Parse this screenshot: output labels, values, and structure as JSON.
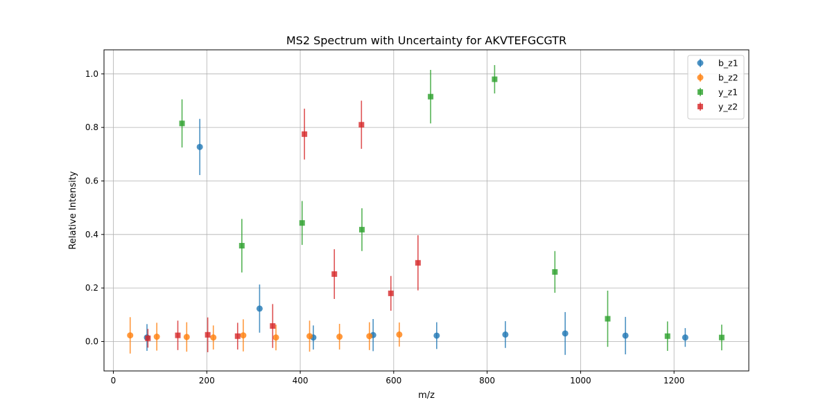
{
  "chart_data": {
    "type": "scatter",
    "title": "MS2 Spectrum with Uncertainty for AKVTEFGCGTR",
    "xlabel": "m/z",
    "ylabel": "Relative Intensity",
    "xlim": [
      -20,
      1360
    ],
    "ylim": [
      -0.11,
      1.09
    ],
    "xticks": [
      0,
      200,
      400,
      600,
      800,
      1000,
      1200
    ],
    "yticks": [
      0.0,
      0.2,
      0.4,
      0.6,
      0.8,
      1.0
    ],
    "xtick_labels": [
      "0",
      "200",
      "400",
      "600",
      "800",
      "1000",
      "1200"
    ],
    "ytick_labels": [
      "0.0",
      "0.2",
      "0.4",
      "0.6",
      "0.8",
      "1.0"
    ],
    "grid": true,
    "legend_position": "top-right",
    "series": [
      {
        "name": "b_z1",
        "color": "#1f77b4",
        "marker": "circle",
        "points": [
          {
            "x": 72,
            "y": 0.015,
            "err": 0.05
          },
          {
            "x": 185,
            "y": 0.727,
            "err": 0.105
          },
          {
            "x": 313,
            "y": 0.123,
            "err": 0.09
          },
          {
            "x": 428,
            "y": 0.015,
            "err": 0.045
          },
          {
            "x": 556,
            "y": 0.024,
            "err": 0.06
          },
          {
            "x": 692,
            "y": 0.022,
            "err": 0.05
          },
          {
            "x": 839,
            "y": 0.026,
            "err": 0.05
          },
          {
            "x": 967,
            "y": 0.03,
            "err": 0.08
          },
          {
            "x": 1096,
            "y": 0.022,
            "err": 0.07
          },
          {
            "x": 1224,
            "y": 0.015,
            "err": 0.035
          }
        ]
      },
      {
        "name": "b_z2",
        "color": "#ff7f0e",
        "marker": "circle",
        "points": [
          {
            "x": 36,
            "y": 0.023,
            "err": 0.068
          },
          {
            "x": 93,
            "y": 0.018,
            "err": 0.052
          },
          {
            "x": 157,
            "y": 0.017,
            "err": 0.055
          },
          {
            "x": 214,
            "y": 0.015,
            "err": 0.045
          },
          {
            "x": 278,
            "y": 0.023,
            "err": 0.06
          },
          {
            "x": 348,
            "y": 0.015,
            "err": 0.048
          },
          {
            "x": 420,
            "y": 0.02,
            "err": 0.058
          },
          {
            "x": 484,
            "y": 0.018,
            "err": 0.048
          },
          {
            "x": 548,
            "y": 0.02,
            "err": 0.052
          },
          {
            "x": 612,
            "y": 0.026,
            "err": 0.045
          }
        ]
      },
      {
        "name": "y_z1",
        "color": "#2ca02c",
        "marker": "square",
        "points": [
          {
            "x": 147,
            "y": 0.815,
            "err": 0.09
          },
          {
            "x": 275,
            "y": 0.358,
            "err": 0.1
          },
          {
            "x": 404,
            "y": 0.443,
            "err": 0.082
          },
          {
            "x": 532,
            "y": 0.418,
            "err": 0.08
          },
          {
            "x": 679,
            "y": 0.915,
            "err": 0.1
          },
          {
            "x": 816,
            "y": 0.98,
            "err": 0.053
          },
          {
            "x": 945,
            "y": 0.26,
            "err": 0.078
          },
          {
            "x": 1058,
            "y": 0.085,
            "err": 0.105
          },
          {
            "x": 1186,
            "y": 0.02,
            "err": 0.055
          },
          {
            "x": 1302,
            "y": 0.015,
            "err": 0.048
          }
        ]
      },
      {
        "name": "y_z2",
        "color": "#d62728",
        "marker": "square",
        "points": [
          {
            "x": 74,
            "y": 0.012,
            "err": 0.035
          },
          {
            "x": 138,
            "y": 0.023,
            "err": 0.055
          },
          {
            "x": 202,
            "y": 0.025,
            "err": 0.065
          },
          {
            "x": 266,
            "y": 0.02,
            "err": 0.05
          },
          {
            "x": 341,
            "y": 0.058,
            "err": 0.082
          },
          {
            "x": 409,
            "y": 0.775,
            "err": 0.095
          },
          {
            "x": 473,
            "y": 0.252,
            "err": 0.093
          },
          {
            "x": 531,
            "y": 0.81,
            "err": 0.09
          },
          {
            "x": 594,
            "y": 0.18,
            "err": 0.065
          },
          {
            "x": 652,
            "y": 0.294,
            "err": 0.103
          }
        ]
      }
    ]
  }
}
